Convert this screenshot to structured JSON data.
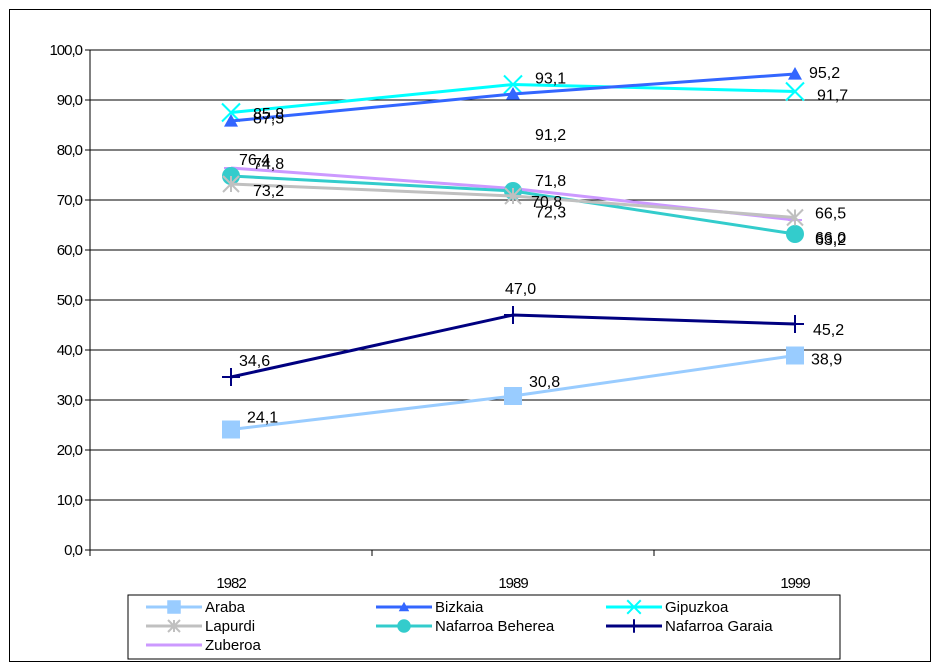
{
  "chart_data": {
    "type": "line",
    "categories": [
      "1982",
      "1989",
      "1999"
    ],
    "ylim": [
      0,
      100
    ],
    "y_ticks": [
      "0,0",
      "10,0",
      "20,0",
      "30,0",
      "40,0",
      "50,0",
      "60,0",
      "70,0",
      "80,0",
      "90,0",
      "100,0"
    ],
    "grid": "horizontal",
    "legend": "bottom",
    "series": [
      {
        "name": "Araba",
        "color": "#99ccff",
        "marker": "square",
        "values": [
          24.1,
          30.8,
          38.9
        ],
        "labels": [
          "24,1",
          "30,8",
          "38,9"
        ]
      },
      {
        "name": "Bizkaia",
        "color": "#3366ff",
        "marker": "triangle",
        "values": [
          85.8,
          91.2,
          95.2
        ],
        "labels": [
          "85,8",
          "91,2",
          "95,2"
        ]
      },
      {
        "name": "Gipuzkoa",
        "color": "#00ffff",
        "marker": "x",
        "values": [
          87.5,
          93.1,
          91.7
        ],
        "labels": [
          "87,5",
          "93,1",
          "91,7"
        ]
      },
      {
        "name": "Lapurdi",
        "color": "#c0c0c0",
        "marker": "star",
        "values": [
          73.2,
          70.8,
          66.5
        ],
        "labels": [
          "73,2",
          "70,8",
          "66,5"
        ]
      },
      {
        "name": "Nafarroa Beherea",
        "color": "#33cccc",
        "marker": "circle",
        "values": [
          74.8,
          71.8,
          63.2
        ],
        "labels": [
          "74,8",
          "71,8",
          "63,2"
        ]
      },
      {
        "name": "Nafarroa Garaia",
        "color": "#000080",
        "marker": "plus",
        "values": [
          34.6,
          47.0,
          45.2
        ],
        "labels": [
          "34,6",
          "47,0",
          "45,2"
        ]
      },
      {
        "name": "Zuberoa",
        "color": "#cc99ff",
        "marker": "dash",
        "values": [
          76.4,
          72.3,
          66.0
        ],
        "labels": [
          "76,4",
          "72,3",
          "66,0"
        ]
      }
    ]
  }
}
